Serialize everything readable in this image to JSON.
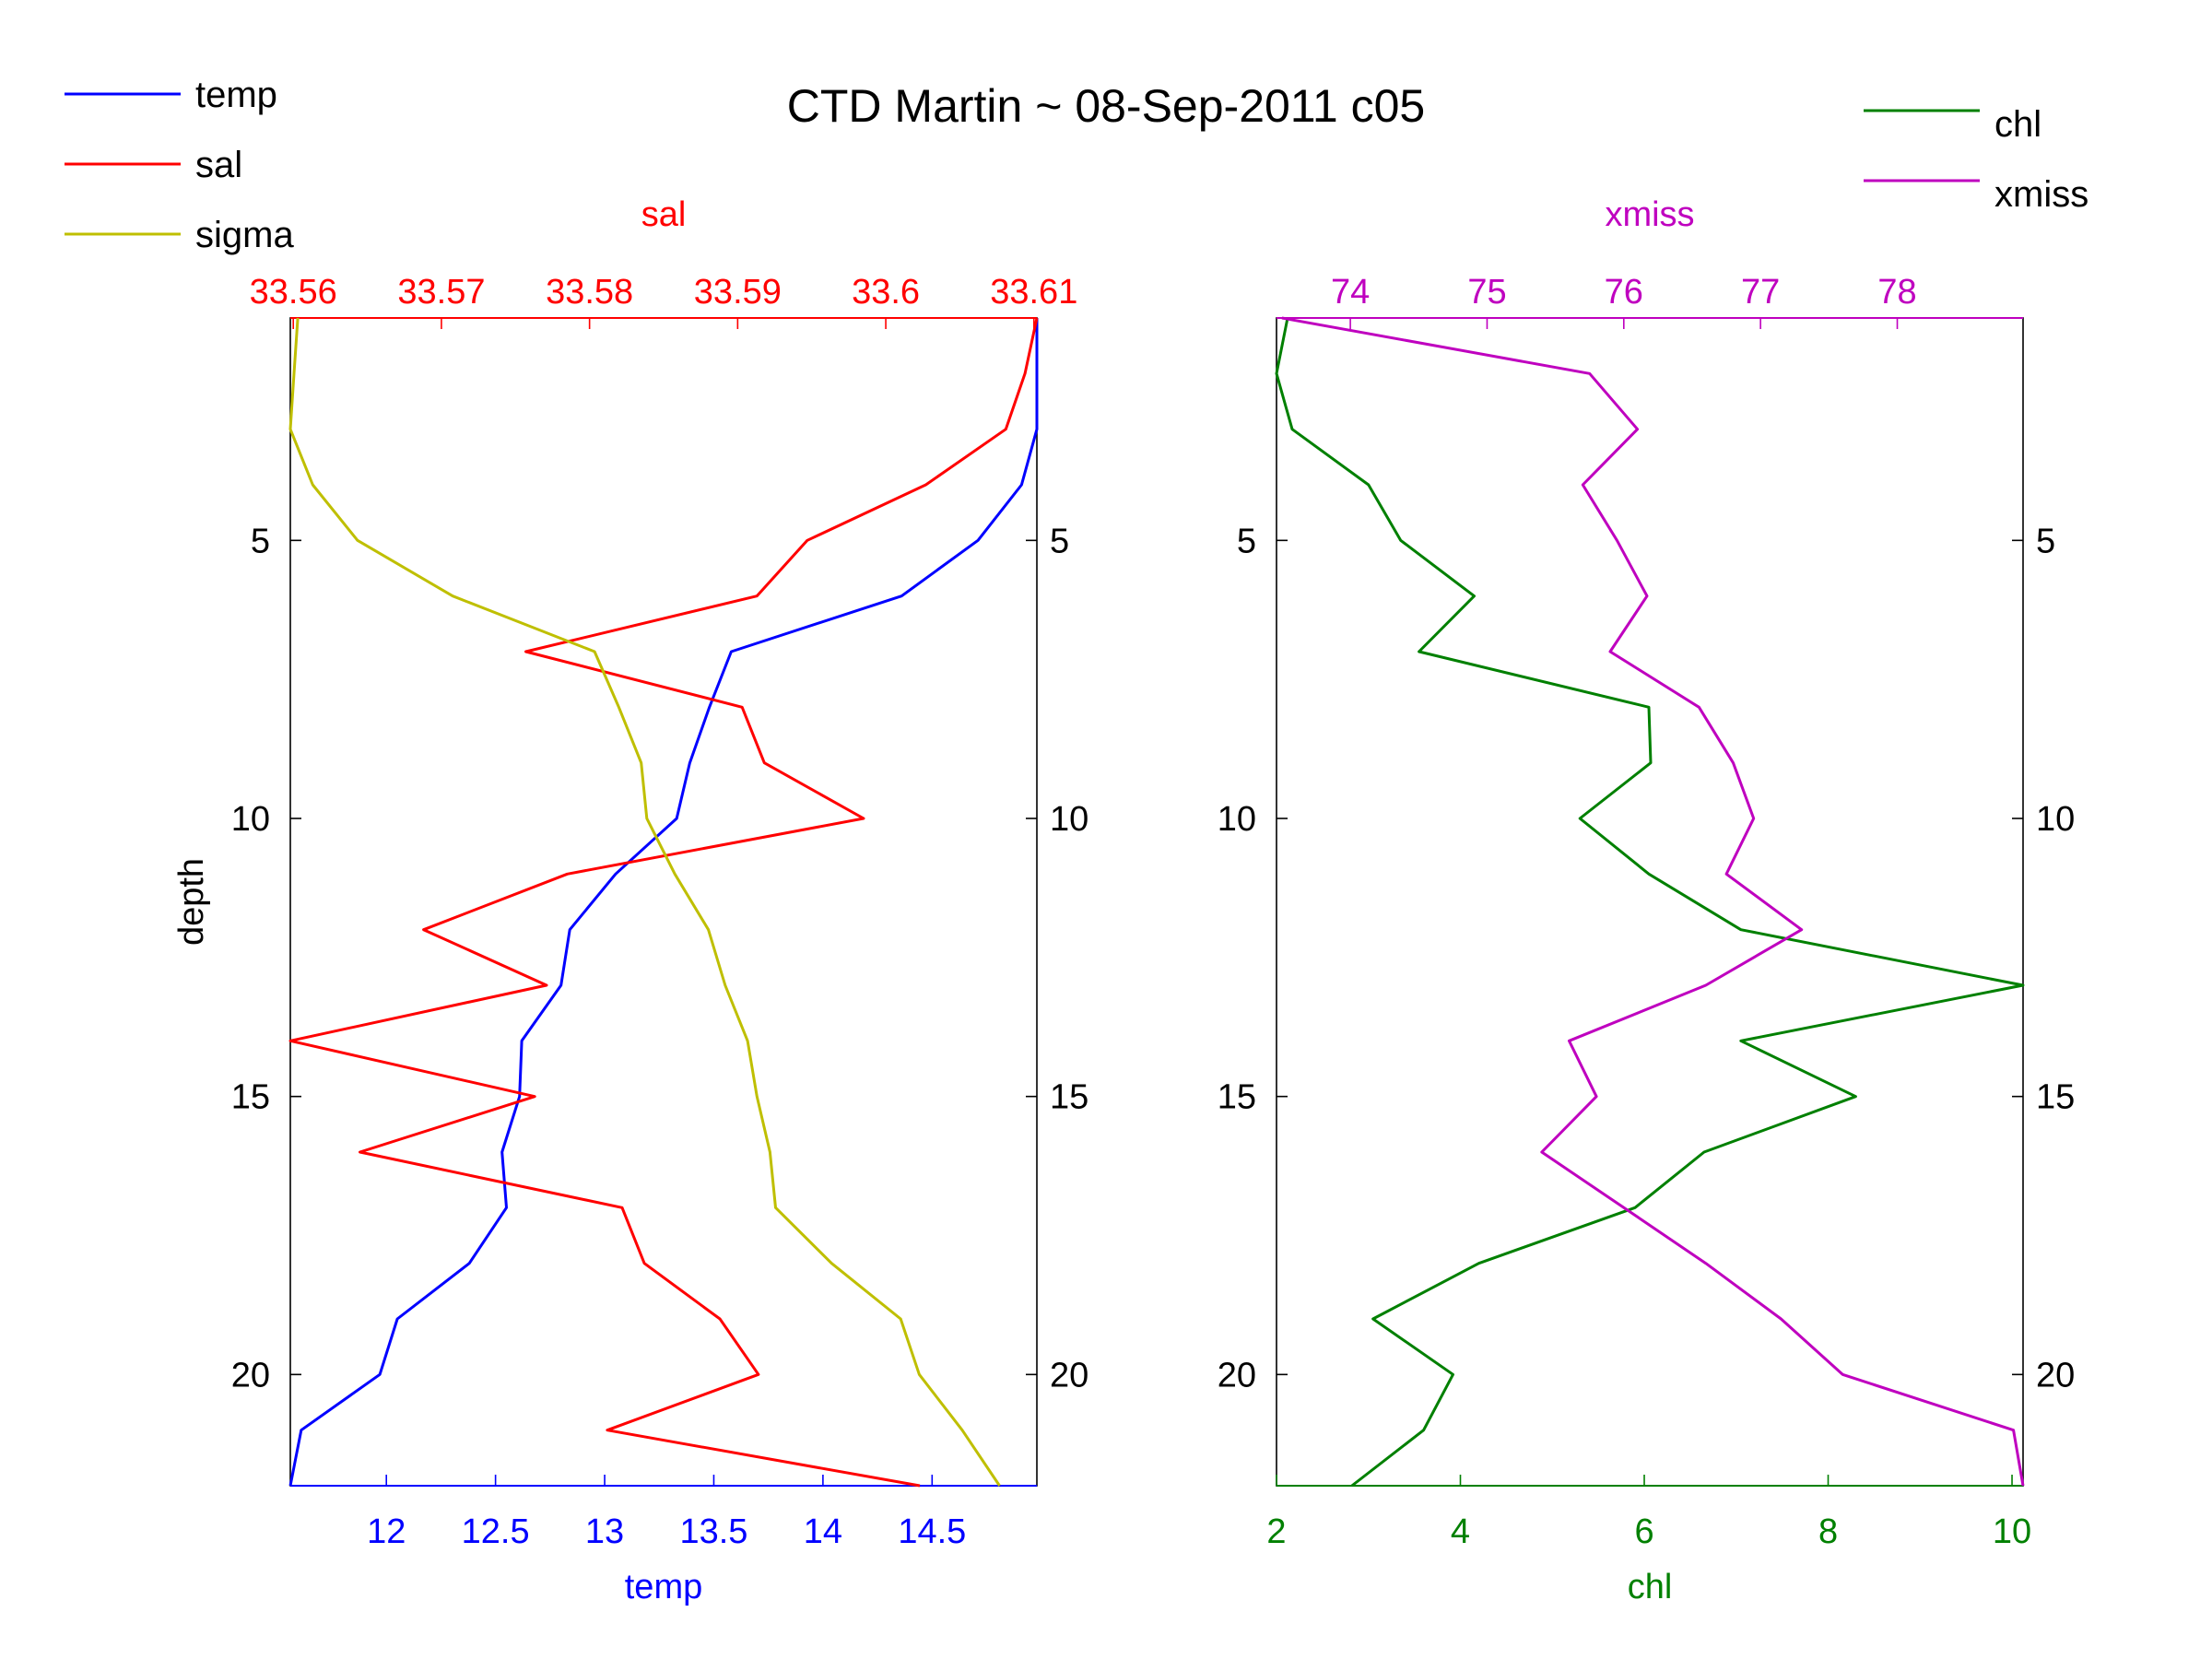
{
  "title": "CTD Martin ~ 08-Sep-2011 c05",
  "colors": {
    "temp": "#0000ff",
    "sal": "#ff0000",
    "sigma": "#bfbf00",
    "chl": "#008000",
    "xmiss": "#bf00bf",
    "axis": "#000000"
  },
  "legend_left": {
    "items": [
      "temp",
      "sal",
      "sigma"
    ],
    "placement": "top-left"
  },
  "legend_right": {
    "items": [
      "chl",
      "xmiss"
    ],
    "placement": "top-right"
  },
  "chart_data": [
    {
      "type": "line",
      "panel": "left",
      "y_axis": {
        "label": "depth",
        "ticks": [
          5,
          10,
          15,
          20
        ],
        "range": [
          1,
          22
        ],
        "reversed": true
      },
      "bottom_axis": {
        "label": "temp",
        "ticks": [
          "12",
          "12.5",
          "13",
          "13.5",
          "14",
          "14.5"
        ],
        "range": [
          11.56,
          14.98
        ]
      },
      "top_axis": {
        "label": "sal",
        "ticks": [
          "33.56",
          "33.57",
          "33.58",
          "33.59",
          "33.6",
          "33.61"
        ],
        "range": [
          33.5598,
          33.6102
        ]
      },
      "sigma_range": [
        24.6,
        25.0
      ],
      "grid": false,
      "series": [
        {
          "name": "temp",
          "axis": "bottom",
          "depth": [
            1,
            2,
            3,
            4,
            5,
            6,
            7,
            8,
            9,
            10,
            11,
            12,
            13,
            14,
            15,
            16,
            17,
            18,
            19,
            20,
            21,
            22
          ],
          "values": [
            14.98,
            14.98,
            14.98,
            14.91,
            14.71,
            14.36,
            13.58,
            13.48,
            13.39,
            13.33,
            13.05,
            12.84,
            12.8,
            12.62,
            12.61,
            12.53,
            12.55,
            12.38,
            12.05,
            11.97,
            11.61,
            11.56
          ]
        },
        {
          "name": "sal",
          "axis": "top",
          "depth": [
            1,
            2,
            3,
            4,
            5,
            6,
            7,
            8,
            9,
            10,
            11,
            12,
            13,
            14,
            15,
            16,
            17,
            18,
            19,
            20,
            21,
            22
          ],
          "values": [
            33.6102,
            33.6094,
            33.6081,
            33.6027,
            33.5947,
            33.5913,
            33.5757,
            33.5903,
            33.5918,
            33.5985,
            33.5785,
            33.5688,
            33.5771,
            33.5598,
            33.5763,
            33.5645,
            33.5822,
            33.5837,
            33.5888,
            33.5914,
            33.5812,
            33.6023
          ]
        },
        {
          "name": "sigma",
          "axis": "sigma",
          "depth": [
            1,
            2,
            3,
            4,
            5,
            6,
            7,
            8,
            9,
            10,
            11,
            12,
            13,
            14,
            15,
            16,
            17,
            18,
            19,
            20,
            21,
            22
          ],
          "values": [
            24.604,
            24.602,
            24.6,
            24.612,
            24.636,
            24.687,
            24.763,
            24.776,
            24.788,
            24.791,
            24.806,
            24.824,
            24.833,
            24.845,
            24.85,
            24.857,
            24.86,
            24.89,
            24.927,
            24.937,
            24.96,
            24.98
          ]
        }
      ]
    },
    {
      "type": "line",
      "panel": "right",
      "y_axis": {
        "label": "",
        "ticks": [
          5,
          10,
          15,
          20
        ],
        "range": [
          1,
          22
        ],
        "reversed": true
      },
      "bottom_axis": {
        "label": "chl",
        "ticks": [
          "2",
          "4",
          "6",
          "8",
          "10"
        ],
        "range": [
          2.0,
          10.12
        ]
      },
      "top_axis": {
        "label": "xmiss",
        "ticks": [
          "74",
          "75",
          "76",
          "77",
          "78"
        ],
        "range": [
          73.46,
          78.92
        ]
      },
      "grid": false,
      "series": [
        {
          "name": "chl",
          "axis": "bottom",
          "depth": [
            1,
            2,
            3,
            4,
            5,
            6,
            7,
            8,
            9,
            10,
            11,
            12,
            13,
            14,
            15,
            16,
            17,
            18,
            19,
            20,
            21,
            22
          ],
          "values": [
            2.12,
            2.0,
            2.17,
            3.0,
            3.35,
            4.15,
            3.55,
            6.05,
            6.07,
            5.3,
            6.05,
            7.05,
            10.12,
            7.05,
            8.3,
            6.65,
            5.9,
            4.2,
            3.05,
            3.92,
            3.6,
            2.82
          ]
        },
        {
          "name": "xmiss",
          "axis": "top",
          "depth": [
            1,
            2,
            3,
            4,
            5,
            6,
            7,
            8,
            9,
            10,
            11,
            12,
            13,
            14,
            15,
            16,
            17,
            18,
            19,
            20,
            21,
            22
          ],
          "values": [
            73.5,
            75.75,
            76.1,
            75.7,
            75.95,
            76.17,
            75.9,
            76.55,
            76.8,
            76.95,
            76.75,
            77.3,
            76.6,
            75.6,
            75.8,
            75.4,
            76.0,
            76.6,
            77.15,
            77.6,
            78.85,
            78.92
          ]
        }
      ]
    }
  ]
}
